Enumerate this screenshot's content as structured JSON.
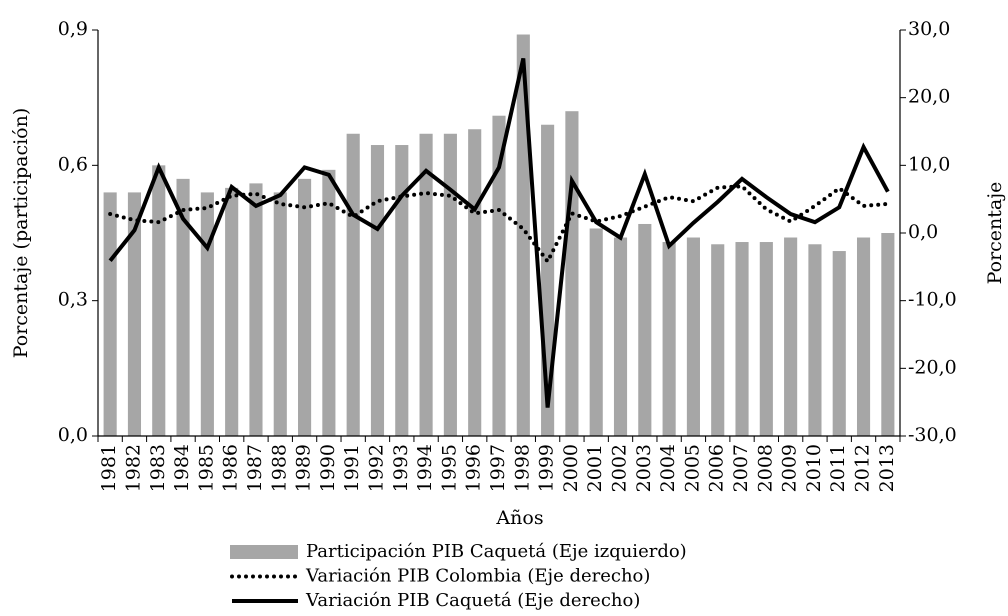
{
  "chart_data": {
    "type": "bar",
    "x_label": "Años",
    "y_label": "Porcentaje (participación)",
    "y2_label": "Porcentaje",
    "categories": [
      "1981",
      "1982",
      "1983",
      "1984",
      "1985",
      "1986",
      "1987",
      "1988",
      "1989",
      "1990",
      "1991",
      "1992",
      "1993",
      "1994",
      "1995",
      "1996",
      "1997",
      "1998",
      "1999",
      "2000",
      "2001",
      "2002",
      "2003",
      "2004",
      "2005",
      "2006",
      "2007",
      "2008",
      "2009",
      "2010",
      "2011",
      "2012",
      "2013"
    ],
    "series": [
      {
        "name": "Participación PIB Caquetá (Eje izquierdo)",
        "type": "bar",
        "color": "#a6a6a6",
        "values": [
          0.54,
          0.54,
          0.6,
          0.57,
          0.54,
          0.55,
          0.56,
          0.54,
          0.57,
          0.59,
          0.67,
          0.645,
          0.645,
          0.67,
          0.67,
          0.68,
          0.71,
          0.89,
          0.69,
          0.72,
          0.46,
          0.44,
          0.47,
          0.43,
          0.44,
          0.425,
          0.43,
          0.43,
          0.44,
          0.425,
          0.41,
          0.44,
          0.45
        ]
      },
      {
        "name": "Variación PIB Colombia (Eje derecho)",
        "type": "line",
        "line_style": "dotted",
        "axis": "y2",
        "color": "#000000",
        "values": [
          2.8,
          1.9,
          1.6,
          3.4,
          3.7,
          5.5,
          5.8,
          4.3,
          3.8,
          4.4,
          2.4,
          4.7,
          5.4,
          5.9,
          5.5,
          2.9,
          3.4,
          0.6,
          -4.2,
          2.9,
          1.7,
          2.5,
          3.9,
          5.3,
          4.7,
          6.7,
          6.9,
          3.5,
          1.7,
          4.0,
          6.6,
          4.0,
          4.3
        ]
      },
      {
        "name": "Variación PIB Caquetá (Eje derecho)",
        "type": "line",
        "line_style": "solid",
        "axis": "y2",
        "color": "#000000",
        "values": [
          -4.1,
          0.4,
          9.7,
          2.1,
          -2.2,
          6.8,
          4.0,
          5.6,
          9.7,
          8.6,
          2.7,
          0.6,
          5.5,
          9.2,
          6.4,
          3.5,
          9.7,
          25.8,
          -25.8,
          7.7,
          1.6,
          -0.7,
          8.7,
          -1.9,
          1.5,
          4.6,
          8.0,
          5.3,
          2.8,
          1.6,
          3.8,
          12.7,
          6.1
        ]
      }
    ],
    "ylim": [
      0,
      0.9
    ],
    "yticks": [
      {
        "value": 0,
        "label": "0,0"
      },
      {
        "value": 0.3,
        "label": "0,3"
      },
      {
        "value": 0.6,
        "label": "0,6"
      },
      {
        "value": 0.9,
        "label": "0,9"
      }
    ],
    "y2lim": [
      -30,
      30
    ],
    "y2ticks": [
      {
        "value": -30,
        "label": "-30,0"
      },
      {
        "value": -20,
        "label": "-20,0"
      },
      {
        "value": -10,
        "label": "-10,0"
      },
      {
        "value": 0,
        "label": "0,0"
      },
      {
        "value": 10,
        "label": "10,0"
      },
      {
        "value": 20,
        "label": "20,0"
      },
      {
        "value": 30,
        "label": "30,0"
      }
    ],
    "legend": "bottom",
    "grid": false
  }
}
